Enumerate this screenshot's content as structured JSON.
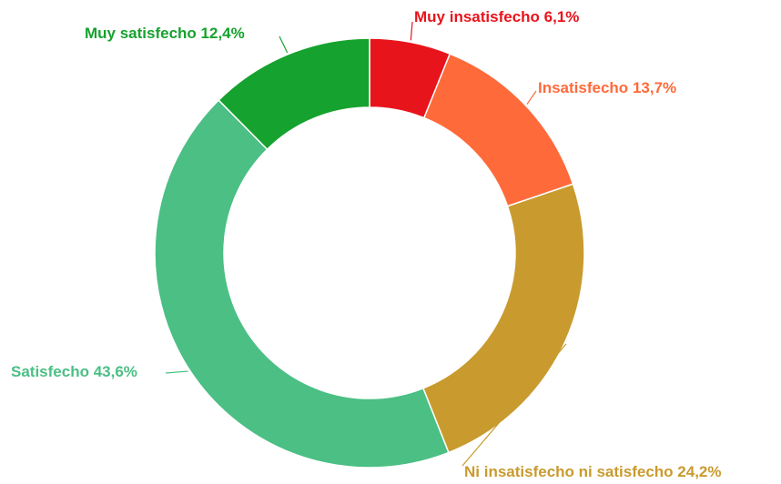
{
  "chart_data": {
    "type": "donut",
    "categories": [
      "Muy insatisfecho",
      "Insatisfecho",
      "Ni insatisfecho ni satisfecho",
      "Satisfecho",
      "Muy satisfecho"
    ],
    "values": [
      6.1,
      13.7,
      24.2,
      43.6,
      12.4
    ],
    "value_labels": [
      "6,1%",
      "13,7%",
      "24,2%",
      "43,6%",
      "12,4%"
    ],
    "colors": [
      "#e8141c",
      "#ff6a3a",
      "#c99a2e",
      "#4bbf84",
      "#16a22e"
    ]
  }
}
